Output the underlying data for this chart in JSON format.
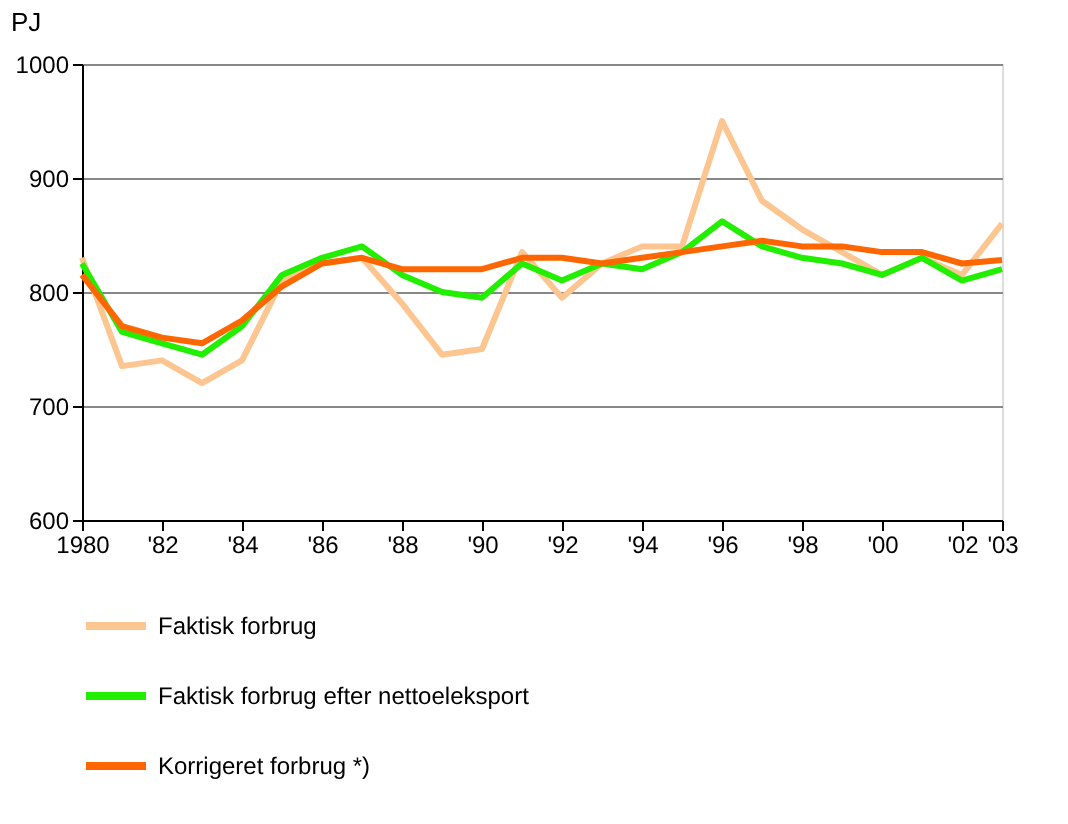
{
  "chart_data": {
    "type": "line",
    "ylabel": "PJ",
    "x": [
      1980,
      1981,
      1982,
      1983,
      1984,
      1985,
      1986,
      1987,
      1988,
      1989,
      1990,
      1991,
      1992,
      1993,
      1994,
      1995,
      1996,
      1997,
      1998,
      1999,
      2000,
      2001,
      2002,
      2003
    ],
    "series": [
      {
        "name": "Faktisk forbrug",
        "color": "#fdc58f",
        "values": [
          830,
          735,
          740,
          720,
          740,
          810,
          825,
          830,
          790,
          745,
          750,
          835,
          795,
          825,
          840,
          840,
          950,
          880,
          855,
          835,
          815,
          830,
          815,
          860
        ]
      },
      {
        "name": "Faktisk forbrug efter nettoeleksport",
        "color": "#22ee00",
        "values": [
          825,
          765,
          755,
          745,
          770,
          815,
          830,
          840,
          815,
          800,
          795,
          825,
          810,
          825,
          820,
          835,
          862,
          840,
          830,
          825,
          815,
          830,
          810,
          820
        ]
      },
      {
        "name": "Korrigeret forbrug *)",
        "color": "#ff6600",
        "values": [
          815,
          770,
          760,
          755,
          775,
          805,
          825,
          830,
          820,
          820,
          820,
          830,
          830,
          825,
          830,
          835,
          840,
          845,
          840,
          840,
          835,
          835,
          825,
          828
        ]
      }
    ],
    "xlim": [
      1980,
      2003
    ],
    "xticks": [
      1980,
      {
        "value": 1982,
        "label": "'82"
      },
      {
        "value": 1984,
        "label": "'84"
      },
      {
        "value": 1986,
        "label": "'86"
      },
      {
        "value": 1988,
        "label": "'88"
      },
      {
        "value": 1990,
        "label": "'90"
      },
      {
        "value": 1992,
        "label": "'92"
      },
      {
        "value": 1994,
        "label": "'94"
      },
      {
        "value": 1996,
        "label": "'96"
      },
      {
        "value": 1998,
        "label": "'98"
      },
      {
        "value": 2000,
        "label": "'00"
      },
      {
        "value": 2002,
        "label": "'02"
      },
      {
        "value": 2003,
        "label": "'03"
      }
    ],
    "ylim": [
      600,
      1000
    ],
    "yticks": [
      600,
      700,
      800,
      900,
      1000
    ],
    "grid": "y",
    "legend": "bottom",
    "marker": "none",
    "line_style": "solid"
  }
}
